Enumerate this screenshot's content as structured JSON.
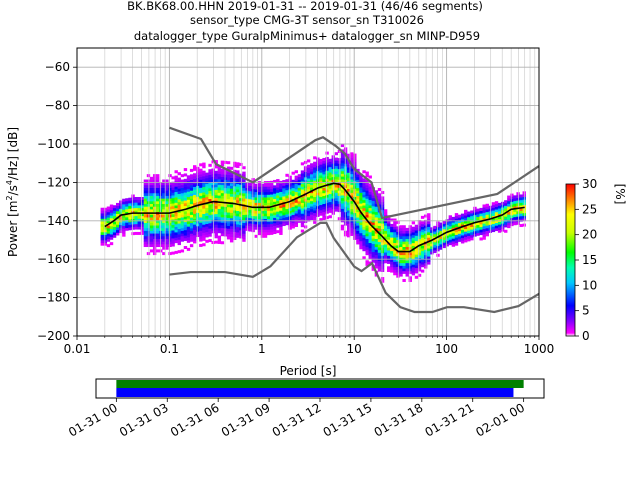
{
  "title": {
    "line1": "BK.BK68.00.HHN   2019-01-31 -- 2019-01-31  (46/46 segments)",
    "line2": "sensor_type CMG-3T sensor_sn T310026",
    "line3": "datalogger_type GuralpMinimus+ datalogger_sn MINP-D959"
  },
  "chart_data": {
    "type": "heatmap",
    "xlabel": "Period [s]",
    "ylabel_parts": [
      "Power [m",
      "2",
      "/s",
      "4",
      "/Hz] [dB]"
    ],
    "xscale": "log",
    "xlim": [
      0.01,
      1000
    ],
    "ylim": [
      -200,
      -50
    ],
    "grid": true,
    "x_ticks": [
      {
        "value": 0.01,
        "label": "0.01"
      },
      {
        "value": 0.1,
        "label": "0.1"
      },
      {
        "value": 1,
        "label": "1"
      },
      {
        "value": 10,
        "label": "10"
      },
      {
        "value": 100,
        "label": "100"
      },
      {
        "value": 1000,
        "label": "1000"
      }
    ],
    "y_ticks": [
      {
        "value": -60,
        "label": "−60"
      },
      {
        "value": -80,
        "label": "−80"
      },
      {
        "value": -100,
        "label": "−100"
      },
      {
        "value": -120,
        "label": "−120"
      },
      {
        "value": -140,
        "label": "−140"
      },
      {
        "value": -160,
        "label": "−160"
      },
      {
        "value": -180,
        "label": "−180"
      },
      {
        "value": -200,
        "label": "−200"
      }
    ],
    "colorbar": {
      "label": "[%]",
      "range": [
        0,
        30
      ],
      "colormap": "pqlx",
      "ticks": [
        {
          "value": 0,
          "label": "0"
        },
        {
          "value": 5,
          "label": "5"
        },
        {
          "value": 10,
          "label": "10"
        },
        {
          "value": 15,
          "label": "15"
        },
        {
          "value": 20,
          "label": "20"
        },
        {
          "value": 25,
          "label": "25"
        },
        {
          "value": 30,
          "label": "30"
        }
      ]
    },
    "noise_models": {
      "color": "#666666",
      "high": [
        [
          0.1,
          -91.5
        ],
        [
          0.22,
          -97.4
        ],
        [
          0.32,
          -110.5
        ],
        [
          0.8,
          -120
        ],
        [
          3.8,
          -98
        ],
        [
          4.6,
          -96.5
        ],
        [
          6.3,
          -101
        ],
        [
          7.9,
          -105
        ],
        [
          10,
          -113
        ],
        [
          15.4,
          -120
        ],
        [
          20,
          -138.5
        ],
        [
          354,
          -126
        ],
        [
          1000,
          -111.5
        ]
      ],
      "low": [
        [
          0.1,
          -168
        ],
        [
          0.17,
          -166.7
        ],
        [
          0.4,
          -166.7
        ],
        [
          0.8,
          -169.2
        ],
        [
          1.24,
          -163.7
        ],
        [
          2.4,
          -148.6
        ],
        [
          4.3,
          -141.1
        ],
        [
          5,
          -141.1
        ],
        [
          6,
          -149
        ],
        [
          10,
          -163.8
        ],
        [
          12,
          -166.2
        ],
        [
          15.6,
          -162.1
        ],
        [
          21.9,
          -177.5
        ],
        [
          31.6,
          -185
        ],
        [
          45,
          -187.5
        ],
        [
          70,
          -187.5
        ],
        [
          101,
          -185
        ],
        [
          154,
          -185
        ],
        [
          328,
          -187.5
        ],
        [
          600,
          -184.4
        ],
        [
          1000,
          -178
        ]
      ]
    },
    "mean_curve": {
      "color": "#000000",
      "points": [
        [
          0.02,
          -143
        ],
        [
          0.025,
          -140
        ],
        [
          0.03,
          -137
        ],
        [
          0.04,
          -136
        ],
        [
          0.06,
          -136
        ],
        [
          0.08,
          -136
        ],
        [
          0.1,
          -136
        ],
        [
          0.15,
          -134
        ],
        [
          0.2,
          -132
        ],
        [
          0.3,
          -130
        ],
        [
          0.5,
          -131
        ],
        [
          0.8,
          -133
        ],
        [
          1.2,
          -133
        ],
        [
          2,
          -130
        ],
        [
          3,
          -126
        ],
        [
          4,
          -123
        ],
        [
          5,
          -121.5
        ],
        [
          6,
          -120.5
        ],
        [
          7,
          -121
        ],
        [
          8,
          -124
        ],
        [
          10,
          -130
        ],
        [
          12,
          -136
        ],
        [
          15,
          -142
        ],
        [
          20,
          -148
        ],
        [
          25,
          -153
        ],
        [
          30,
          -156
        ],
        [
          40,
          -156
        ],
        [
          50,
          -153
        ],
        [
          70,
          -150
        ],
        [
          100,
          -146
        ],
        [
          150,
          -143
        ],
        [
          200,
          -141
        ],
        [
          300,
          -139
        ],
        [
          400,
          -137
        ],
        [
          500,
          -134
        ],
        [
          700,
          -133
        ]
      ]
    },
    "density": {
      "x_range": [
        0.018,
        700
      ],
      "cells_per_decade": 30,
      "db_step": 1.4
    }
  },
  "time_axis": {
    "ticks": [
      "01-31 00",
      "01-31 03",
      "01-31 06",
      "01-31 09",
      "01-31 12",
      "01-31 15",
      "01-31 18",
      "01-31 21",
      "02-01 00"
    ],
    "range_hours": [
      -1.2,
      25.2
    ],
    "bars": [
      {
        "name": "data-available",
        "color": "#008000",
        "start_h": 0,
        "end_h": 24.0
      },
      {
        "name": "data-used",
        "color": "#0000ff",
        "start_h": 0,
        "end_h": 23.4
      }
    ]
  }
}
